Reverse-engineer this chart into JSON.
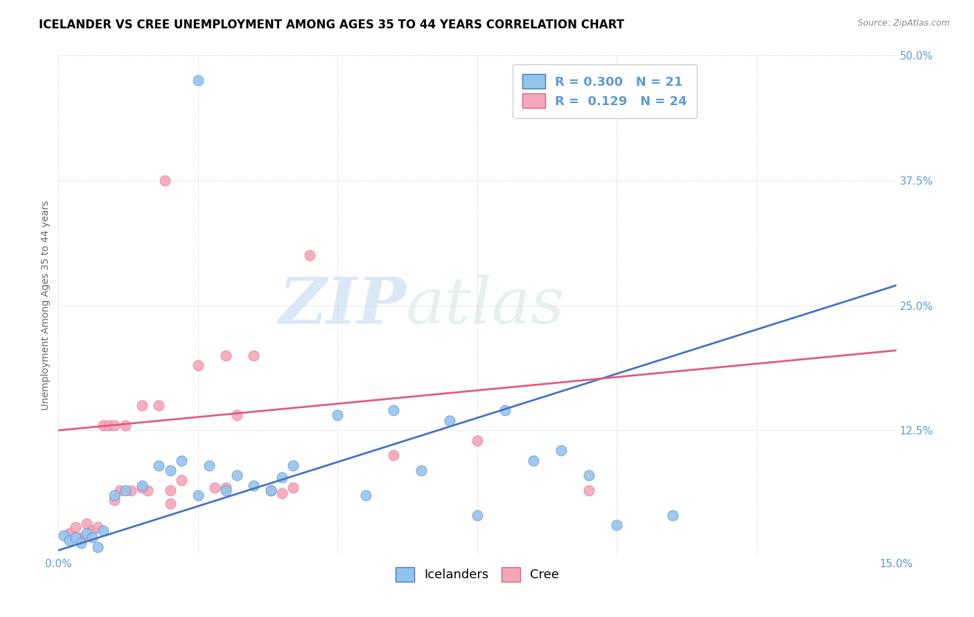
{
  "title": "ICELANDER VS CREE UNEMPLOYMENT AMONG AGES 35 TO 44 YEARS CORRELATION CHART",
  "source": "Source: ZipAtlas.com",
  "ylabel": "Unemployment Among Ages 35 to 44 years",
  "xlim": [
    0.0,
    0.15
  ],
  "ylim": [
    0.0,
    0.5
  ],
  "xticks": [
    0.0,
    0.025,
    0.05,
    0.075,
    0.1,
    0.125,
    0.15
  ],
  "xticklabels": [
    "0.0%",
    "",
    "",
    "",
    "",
    "",
    "15.0%"
  ],
  "yticks": [
    0.0,
    0.125,
    0.25,
    0.375,
    0.5
  ],
  "yticklabels": [
    "",
    "12.5%",
    "25.0%",
    "37.5%",
    "50.0%"
  ],
  "icelander_x": [
    0.001,
    0.002,
    0.003,
    0.004,
    0.005,
    0.006,
    0.007,
    0.008,
    0.01,
    0.012,
    0.015,
    0.018,
    0.02,
    0.022,
    0.025,
    0.027,
    0.03,
    0.032,
    0.035,
    0.038,
    0.042,
    0.05,
    0.055,
    0.065,
    0.07,
    0.08,
    0.09,
    0.095,
    0.1,
    0.11,
    0.025,
    0.04,
    0.06,
    0.075,
    0.085
  ],
  "icelander_y": [
    0.02,
    0.015,
    0.018,
    0.012,
    0.022,
    0.018,
    0.008,
    0.025,
    0.06,
    0.065,
    0.07,
    0.09,
    0.085,
    0.095,
    0.475,
    0.09,
    0.065,
    0.08,
    0.07,
    0.065,
    0.09,
    0.14,
    0.06,
    0.085,
    0.135,
    0.145,
    0.105,
    0.08,
    0.03,
    0.04,
    0.06,
    0.078,
    0.145,
    0.04,
    0.095
  ],
  "cree_x": [
    0.002,
    0.003,
    0.004,
    0.005,
    0.006,
    0.007,
    0.008,
    0.009,
    0.01,
    0.011,
    0.012,
    0.013,
    0.015,
    0.016,
    0.018,
    0.019,
    0.02,
    0.022,
    0.025,
    0.028,
    0.03,
    0.032,
    0.035,
    0.038,
    0.042,
    0.06,
    0.075,
    0.095,
    0.01,
    0.015,
    0.02,
    0.03,
    0.04,
    0.045
  ],
  "cree_y": [
    0.022,
    0.028,
    0.018,
    0.032,
    0.025,
    0.028,
    0.13,
    0.13,
    0.13,
    0.065,
    0.13,
    0.065,
    0.15,
    0.065,
    0.15,
    0.375,
    0.065,
    0.075,
    0.19,
    0.068,
    0.2,
    0.14,
    0.2,
    0.065,
    0.068,
    0.1,
    0.115,
    0.065,
    0.055,
    0.068,
    0.052,
    0.068,
    0.062,
    0.3
  ],
  "icelander_color": "#92C5ED",
  "cree_color": "#F4A7BB",
  "icelander_line_color": "#4472C4",
  "cree_line_color": "#E05C7A",
  "icelander_R": "0.300",
  "icelander_N": "21",
  "cree_R": "0.129",
  "cree_N": "24",
  "legend_label_icelander": "Icelanders",
  "legend_label_cree": "Cree",
  "watermark_zip": "ZIP",
  "watermark_atlas": "atlas",
  "title_fontsize": 12,
  "axis_label_fontsize": 10,
  "tick_fontsize": 11,
  "legend_fontsize": 13,
  "background_color": "#FFFFFF",
  "grid_color": "#DDDDDD",
  "tick_color": "#5B9BD5",
  "trend_icelander_x0": 0.0,
  "trend_icelander_y0": 0.005,
  "trend_icelander_x1": 0.15,
  "trend_icelander_y1": 0.27,
  "trend_cree_x0": 0.0,
  "trend_cree_y0": 0.125,
  "trend_cree_x1": 0.15,
  "trend_cree_y1": 0.205
}
